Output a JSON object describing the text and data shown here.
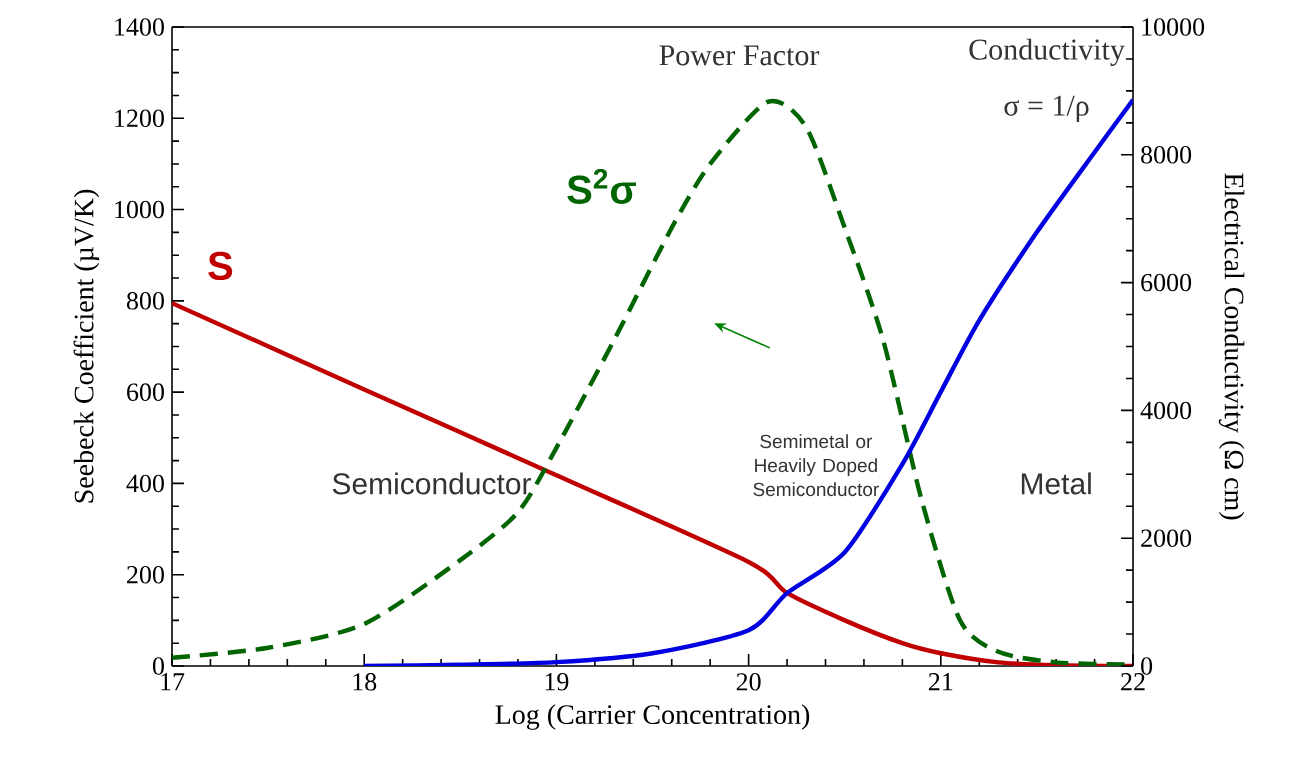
{
  "chart_data": {
    "type": "line",
    "xlabel": "Log (Carrier Concentration)",
    "ylabel": "Seebeck Coefficient (µV/K)",
    "y2label": "Electrical Conductivity (Ω cm)",
    "xlim": [
      17,
      22
    ],
    "xticks": [
      17,
      18,
      19,
      20,
      21,
      22
    ],
    "ylim": [
      0,
      1400
    ],
    "yticks": [
      0,
      200,
      400,
      600,
      800,
      1000,
      1200,
      1400
    ],
    "y2lim": [
      0,
      10000
    ],
    "y2ticks": [
      0,
      2000,
      4000,
      6000,
      8000,
      10000
    ],
    "series": [
      {
        "name": "S",
        "color": "#c00000",
        "line_style": "solid",
        "x": [
          17,
          18,
          19,
          20,
          20.2,
          20.5,
          20.8,
          21,
          21.3,
          21.6,
          22
        ],
        "values": [
          795,
          606,
          418,
          228,
          160,
          100,
          50,
          28,
          8,
          2,
          0
        ]
      },
      {
        "name": "S$^{2}$σ",
        "color": "#006400",
        "line_style": "dashed",
        "x": [
          17,
          17.5,
          18,
          18.5,
          18.8,
          19,
          19.3,
          19.6,
          19.8,
          20.1,
          20.3,
          20.5,
          20.7,
          20.9,
          21.1,
          21.3,
          21.6,
          22
        ],
        "values": [
          18,
          40,
          92,
          232,
          337,
          478,
          714,
          960,
          1100,
          1236,
          1180,
          960,
          714,
          364,
          100,
          31,
          8,
          3
        ]
      },
      {
        "name": null,
        "color": "#0000e0",
        "line_style": "solid",
        "axis": "y2",
        "x": [
          18,
          18.5,
          19,
          19.5,
          20,
          20.2,
          20.5,
          20.8,
          21,
          21.2,
          21.5,
          21.8,
          22
        ],
        "values": [
          0,
          20,
          60,
          200,
          560,
          1140,
          1780,
          3160,
          4290,
          5410,
          6790,
          8040,
          8860
        ]
      }
    ],
    "annotations": [
      "Power Factor",
      "Conductivity",
      "σ = 1/ρ",
      "Semiconductor",
      "Semimetal or Heavily Doped Semiconductor",
      "Metal"
    ]
  }
}
